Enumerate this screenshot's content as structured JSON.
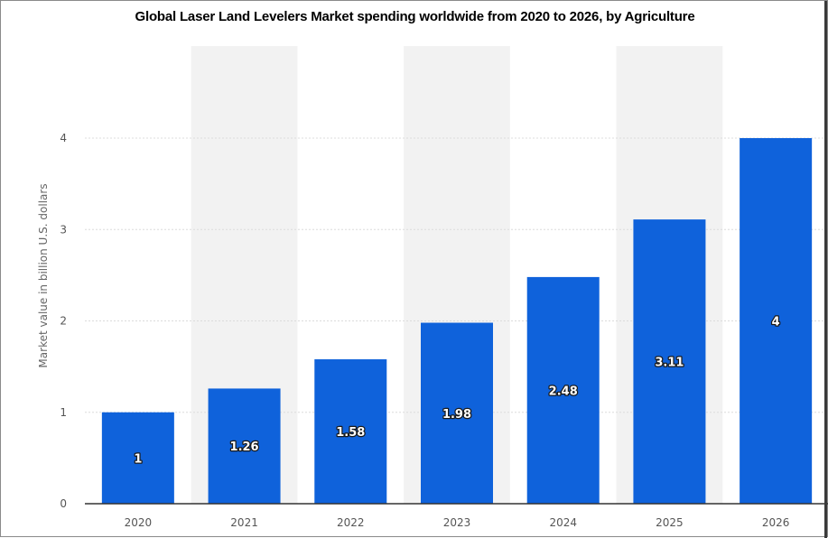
{
  "title": "Global Laser Land Levelers Market spending worldwide from 2020 to 2026, by Agriculture",
  "colors": {
    "bar": "#0f62db",
    "band": "#f2f2f2",
    "grid": "#dcdcdc",
    "axis": "#333333"
  },
  "chart_data": {
    "type": "bar",
    "title": "Global Laser Land Levelers Market spending worldwide from 2020 to 2026, by Agriculture",
    "categories": [
      "2020",
      "2021",
      "2022",
      "2023",
      "2024",
      "2025",
      "2026"
    ],
    "values": [
      1,
      1.26,
      1.58,
      1.98,
      2.48,
      3.11,
      4
    ],
    "data_labels": [
      "1",
      "1.26",
      "1.58",
      "1.98",
      "2.48",
      "3.11",
      "4"
    ],
    "ylabel": "Market value in billion U.S. dollars",
    "xlabel": "",
    "ylim": [
      0,
      4
    ],
    "yticks": [
      0,
      1,
      2,
      3,
      4
    ],
    "ytick_labels": [
      "0",
      "1",
      "2",
      "3",
      "4"
    ],
    "grid": true,
    "alternating_bands": true
  }
}
